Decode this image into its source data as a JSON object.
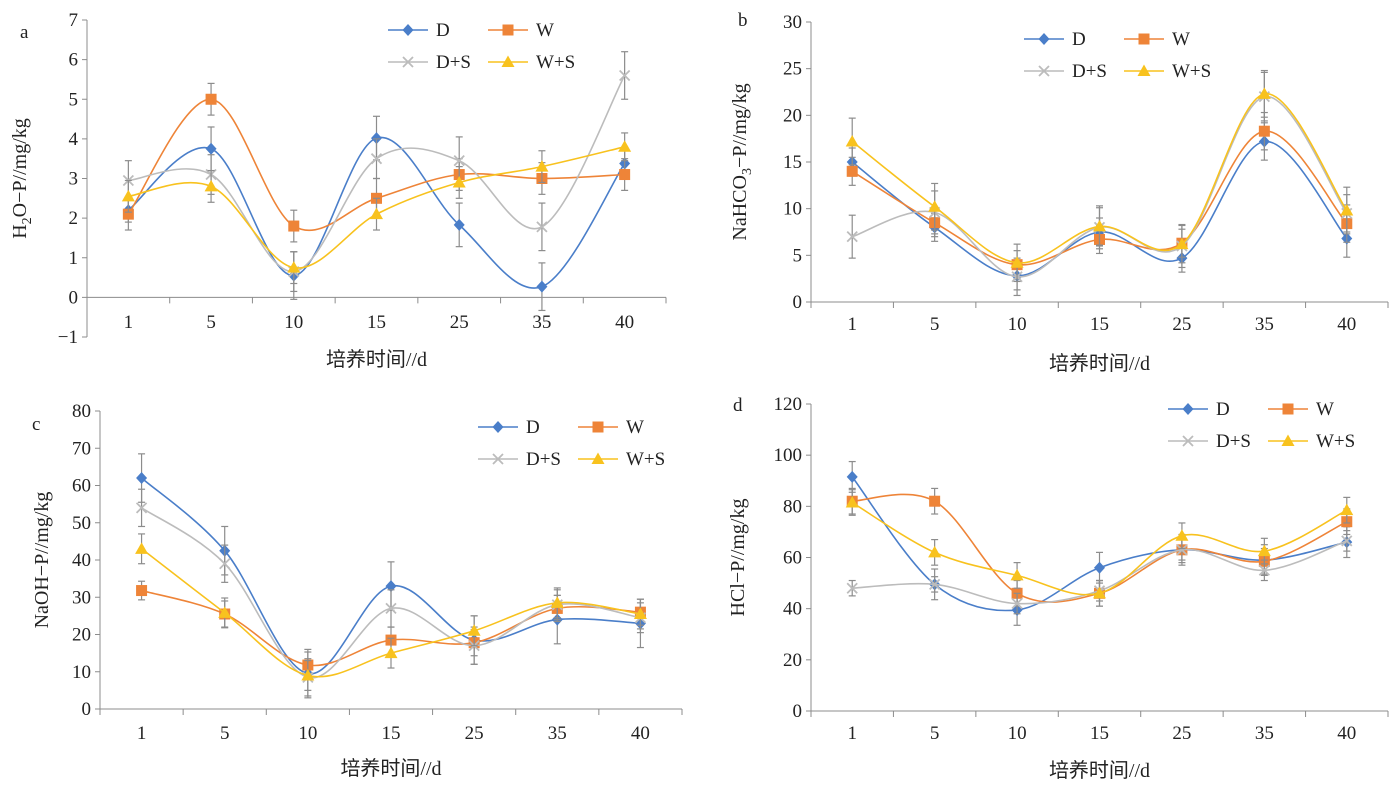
{
  "colors": {
    "D": "#4a7ec9",
    "W": "#ee8438",
    "D+S": "#bcbcbc",
    "W+S": "#f8c21e",
    "errorbar": "#8c8c8c",
    "axis": "#8c8c8c"
  },
  "chart_data": [
    {
      "panel": "a",
      "type": "line",
      "ylabel": "H2O−P//mg/kg",
      "ylabel_sub": "2",
      "xlabel": "培养时间//d",
      "categories": [
        "1",
        "5",
        "10",
        "15",
        "25",
        "35",
        "40"
      ],
      "ylim": [
        -1,
        7
      ],
      "yticks": [
        -1,
        0,
        1,
        2,
        3,
        4,
        5,
        6,
        7
      ],
      "grid": false,
      "legend": "top-right",
      "series": [
        {
          "name": "D",
          "marker": "diamond",
          "values": [
            2.2,
            3.75,
            0.55,
            4.02,
            1.83,
            0.27,
            3.38
          ],
          "errors": [
            0.3,
            0.55,
            0.6,
            0.55,
            0.55,
            0.6,
            0.4
          ]
        },
        {
          "name": "W",
          "marker": "square",
          "values": [
            2.1,
            5.0,
            1.8,
            2.5,
            3.1,
            3.0,
            3.1
          ],
          "errors": [
            0.4,
            0.4,
            0.4,
            0.5,
            0.4,
            0.4,
            0.4
          ]
        },
        {
          "name": "D+S",
          "marker": "x",
          "values": [
            2.95,
            3.1,
            0.65,
            3.5,
            3.45,
            1.78,
            5.6
          ],
          "errors": [
            0.5,
            0.5,
            0.5,
            0.5,
            0.6,
            0.6,
            0.6
          ]
        },
        {
          "name": "W+S",
          "marker": "triangle",
          "values": [
            2.55,
            2.8,
            0.75,
            2.1,
            2.9,
            3.3,
            3.8
          ],
          "errors": [
            0.4,
            0.4,
            0.4,
            0.4,
            0.4,
            0.4,
            0.35
          ]
        }
      ]
    },
    {
      "panel": "b",
      "type": "line",
      "ylabel": "NaHCO3−P//mg/kg",
      "ylabel_sub": "3",
      "xlabel": "培养时间//d",
      "categories": [
        "1",
        "5",
        "10",
        "15",
        "25",
        "35",
        "40"
      ],
      "ylim": [
        0,
        30
      ],
      "yticks": [
        0,
        5,
        10,
        15,
        20,
        25,
        30
      ],
      "grid": false,
      "legend": "top-right",
      "series": [
        {
          "name": "D",
          "marker": "diamond",
          "values": [
            15.0,
            8.0,
            2.8,
            7.5,
            4.7,
            17.2,
            6.8
          ],
          "errors": [
            1.5,
            1.5,
            1.5,
            1.5,
            1.5,
            2.0,
            2.0
          ]
        },
        {
          "name": "W",
          "marker": "square",
          "values": [
            14.0,
            8.5,
            4.0,
            6.7,
            6.3,
            18.3,
            8.4
          ],
          "errors": [
            1.5,
            1.5,
            1.5,
            1.5,
            1.5,
            2.0,
            2.0
          ]
        },
        {
          "name": "D+S",
          "marker": "x",
          "values": [
            7.0,
            9.6,
            2.7,
            8.0,
            6.0,
            22.0,
            9.5
          ],
          "errors": [
            2.3,
            2.3,
            2.0,
            2.3,
            2.3,
            2.6,
            2.0
          ]
        },
        {
          "name": "W+S",
          "marker": "triangle",
          "values": [
            17.2,
            10.2,
            4.2,
            8.1,
            6.2,
            22.3,
            9.8
          ],
          "errors": [
            2.5,
            2.5,
            2.0,
            2.0,
            2.0,
            2.5,
            2.5
          ]
        }
      ]
    },
    {
      "panel": "c",
      "type": "line",
      "ylabel": "NaOH−P//mg/kg",
      "xlabel": "培养时间//d",
      "categories": [
        "1",
        "5",
        "10",
        "15",
        "25",
        "35",
        "40"
      ],
      "ylim": [
        0,
        80
      ],
      "yticks": [
        0,
        10,
        20,
        30,
        40,
        50,
        60,
        70,
        80
      ],
      "grid": false,
      "legend": "top-right",
      "series": [
        {
          "name": "D",
          "marker": "diamond",
          "values": [
            62.0,
            42.5,
            9.5,
            33.0,
            18.5,
            24.0,
            23.0
          ],
          "errors": [
            6.5,
            6.5,
            6.5,
            6.5,
            6.5,
            6.5,
            6.5
          ]
        },
        {
          "name": "W",
          "marker": "square",
          "values": [
            31.8,
            25.5,
            11.8,
            18.5,
            17.8,
            27.0,
            26.0
          ],
          "errors": [
            2.5,
            3.5,
            3.5,
            3.5,
            3.5,
            3.5,
            3.5
          ]
        },
        {
          "name": "D+S",
          "marker": "x",
          "values": [
            54.0,
            39.0,
            8.5,
            27.0,
            17.0,
            28.0,
            24.5
          ],
          "errors": [
            5.0,
            5.0,
            5.0,
            5.0,
            5.0,
            4.0,
            4.0
          ]
        },
        {
          "name": "W+S",
          "marker": "triangle",
          "values": [
            43.0,
            25.8,
            9.0,
            15.0,
            21.0,
            28.5,
            25.5
          ],
          "errors": [
            4.0,
            4.0,
            4.0,
            4.0,
            4.0,
            4.0,
            4.0
          ]
        }
      ]
    },
    {
      "panel": "d",
      "type": "line",
      "ylabel": "HCl−P//mg/kg",
      "xlabel": "培养时间//d",
      "categories": [
        "1",
        "5",
        "10",
        "15",
        "25",
        "35",
        "40"
      ],
      "ylim": [
        0,
        120
      ],
      "yticks": [
        0,
        20,
        40,
        60,
        80,
        100,
        120
      ],
      "grid": false,
      "legend": "top-right",
      "series": [
        {
          "name": "D",
          "marker": "diamond",
          "values": [
            91.5,
            49.5,
            39.5,
            56.0,
            63.0,
            59.0,
            66.0
          ],
          "errors": [
            6.0,
            6.0,
            6.0,
            6.0,
            6.0,
            6.0,
            6.0
          ]
        },
        {
          "name": "W",
          "marker": "square",
          "values": [
            82.0,
            82.0,
            46.0,
            46.0,
            63.0,
            58.5,
            74.0
          ],
          "errors": [
            5.0,
            5.0,
            5.0,
            5.0,
            5.0,
            5.0,
            5.0
          ]
        },
        {
          "name": "D+S",
          "marker": "x",
          "values": [
            48.0,
            49.5,
            42.0,
            47.0,
            63.0,
            55.0,
            66.5
          ],
          "errors": [
            3.0,
            3.0,
            4.0,
            4.0,
            4.0,
            4.0,
            4.0
          ]
        },
        {
          "name": "W+S",
          "marker": "triangle",
          "values": [
            81.5,
            62.0,
            53.0,
            46.0,
            68.5,
            62.5,
            78.5
          ],
          "errors": [
            5.0,
            5.0,
            5.0,
            5.0,
            5.0,
            5.0,
            5.0
          ]
        }
      ]
    }
  ]
}
